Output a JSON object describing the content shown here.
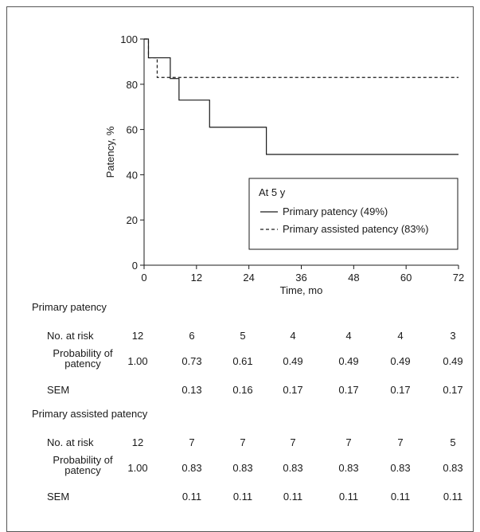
{
  "chart_data": {
    "type": "line",
    "xlabel": "Time, mo",
    "ylabel": "Patency, %",
    "xlim": [
      0,
      72
    ],
    "ylim": [
      0,
      100
    ],
    "xticks": [
      0,
      12,
      24,
      36,
      48,
      60,
      72
    ],
    "yticks": [
      0,
      20,
      40,
      60,
      80,
      100
    ],
    "step": true,
    "legend_title": "At 5 y",
    "legend_position": "lower-right",
    "series": [
      {
        "name": "Primary patency (49%)",
        "style": "solid",
        "x": [
          0,
          1,
          6,
          8,
          15,
          28,
          72
        ],
        "y": [
          100,
          91.7,
          82.5,
          73,
          61,
          49,
          49
        ]
      },
      {
        "name": "Primary assisted patency (83%)",
        "style": "dashed",
        "x": [
          0,
          1,
          3,
          72
        ],
        "y": [
          100,
          91.7,
          83,
          83
        ]
      }
    ]
  },
  "table": {
    "groups": [
      {
        "title": "Primary patency",
        "rows": [
          {
            "label": "No. at risk",
            "values": [
              "12",
              "6",
              "5",
              "4",
              "4",
              "4",
              "3"
            ]
          },
          {
            "label": "Probability of patency",
            "values": [
              "1.00",
              "0.73",
              "0.61",
              "0.49",
              "0.49",
              "0.49",
              "0.49"
            ]
          },
          {
            "label": "SEM",
            "values": [
              "",
              "0.13",
              "0.16",
              "0.17",
              "0.17",
              "0.17",
              "0.17"
            ]
          }
        ]
      },
      {
        "title": "Primary assisted patency",
        "rows": [
          {
            "label": "No. at risk",
            "values": [
              "12",
              "7",
              "7",
              "7",
              "7",
              "7",
              "5"
            ]
          },
          {
            "label": "Probability of patency",
            "values": [
              "1.00",
              "0.83",
              "0.83",
              "0.83",
              "0.83",
              "0.83",
              "0.83"
            ]
          },
          {
            "label": "SEM",
            "values": [
              "",
              "0.11",
              "0.11",
              "0.11",
              "0.11",
              "0.11",
              "0.11"
            ]
          }
        ]
      }
    ]
  }
}
